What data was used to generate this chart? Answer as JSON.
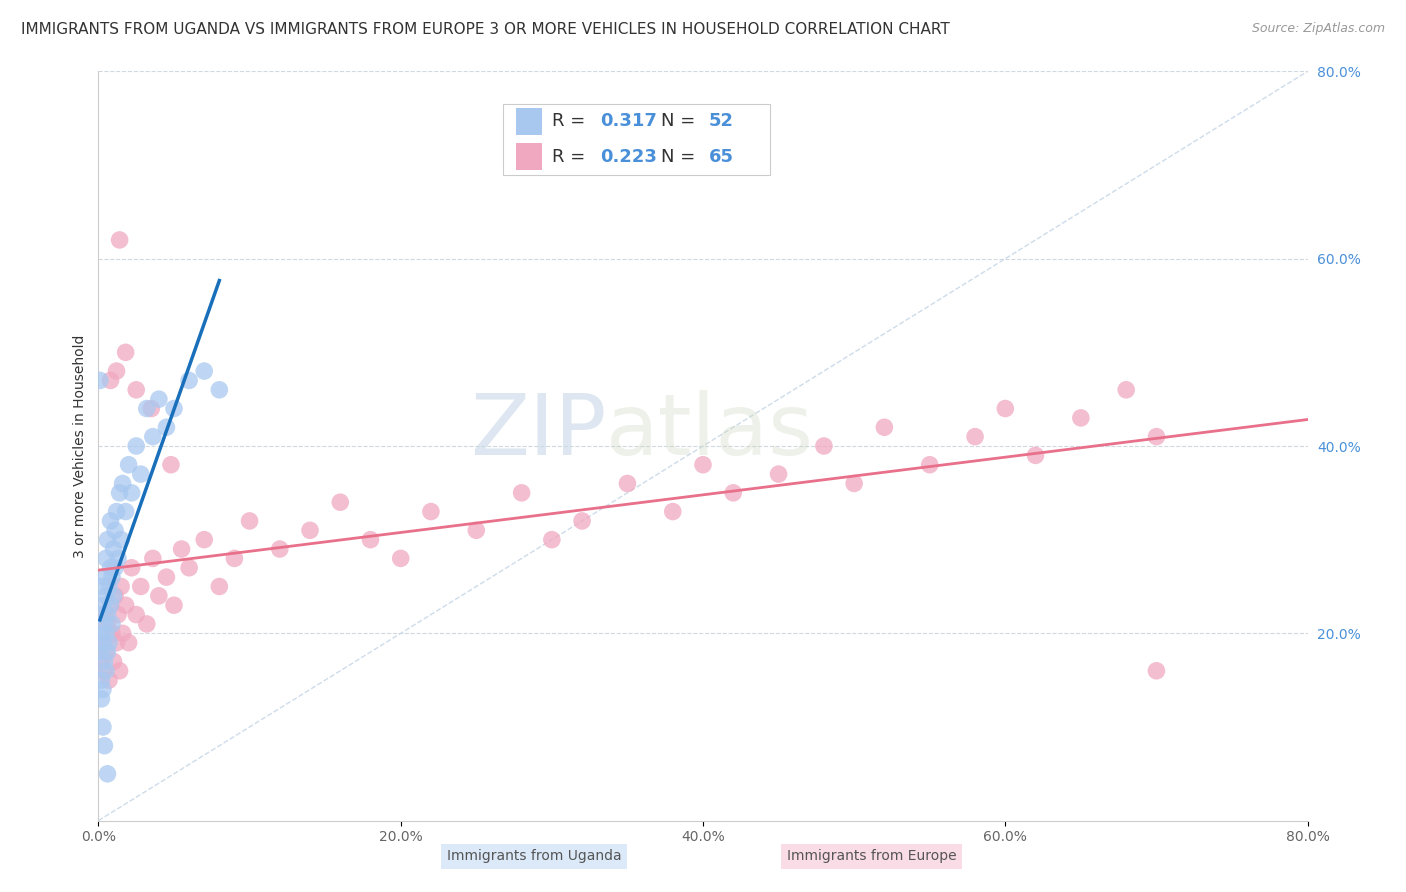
{
  "title": "IMMIGRANTS FROM UGANDA VS IMMIGRANTS FROM EUROPE 3 OR MORE VEHICLES IN HOUSEHOLD CORRELATION CHART",
  "source": "Source: ZipAtlas.com",
  "legend_labels": [
    "Immigrants from Uganda",
    "Immigrants from Europe"
  ],
  "ylabel": "3 or more Vehicles in Household",
  "xlim": [
    0.0,
    0.8
  ],
  "ylim": [
    0.0,
    0.8
  ],
  "xtick_labels": [
    "0.0%",
    "",
    "20.0%",
    "",
    "40.0%",
    "",
    "60.0%",
    "",
    "80.0%"
  ],
  "xtick_vals": [
    0.0,
    0.1,
    0.2,
    0.3,
    0.4,
    0.5,
    0.6,
    0.7,
    0.8
  ],
  "ytick_right_labels": [
    "80.0%",
    "60.0%",
    "40.0%",
    "20.0%"
  ],
  "ytick_right_vals": [
    0.8,
    0.6,
    0.4,
    0.2
  ],
  "R_uganda": 0.317,
  "N_uganda": 52,
  "R_europe": 0.223,
  "N_europe": 65,
  "uganda_color": "#a8c8f0",
  "europe_color": "#f0a8c0",
  "uganda_line_color": "#1a6fbb",
  "europe_line_color": "#e8708a",
  "diagonal_color": "#c8d8e8",
  "watermark_zip": "ZIP",
  "watermark_atlas": "atlas",
  "bg_color": "#ffffff",
  "grid_color": "#d0d8e0",
  "title_fontsize": 11,
  "label_fontsize": 10,
  "tick_fontsize": 10,
  "legend_fontsize": 13,
  "right_tick_color": "#4a90d9",
  "uganda_x": [
    0.001,
    0.001,
    0.002,
    0.002,
    0.002,
    0.003,
    0.003,
    0.003,
    0.004,
    0.004,
    0.004,
    0.005,
    0.005,
    0.005,
    0.005,
    0.006,
    0.006,
    0.006,
    0.007,
    0.007,
    0.008,
    0.008,
    0.008,
    0.009,
    0.009,
    0.01,
    0.01,
    0.011,
    0.011,
    0.012,
    0.013,
    0.014,
    0.015,
    0.016,
    0.018,
    0.02,
    0.022,
    0.025,
    0.028,
    0.032,
    0.036,
    0.04,
    0.045,
    0.05,
    0.06,
    0.07,
    0.08,
    0.001,
    0.002,
    0.003,
    0.004,
    0.006
  ],
  "uganda_y": [
    0.22,
    0.18,
    0.25,
    0.2,
    0.15,
    0.23,
    0.19,
    0.14,
    0.26,
    0.21,
    0.17,
    0.24,
    0.2,
    0.16,
    0.28,
    0.22,
    0.18,
    0.3,
    0.25,
    0.19,
    0.27,
    0.23,
    0.32,
    0.26,
    0.21,
    0.29,
    0.24,
    0.31,
    0.27,
    0.33,
    0.28,
    0.35,
    0.3,
    0.36,
    0.33,
    0.38,
    0.35,
    0.4,
    0.37,
    0.44,
    0.41,
    0.45,
    0.42,
    0.44,
    0.47,
    0.48,
    0.46,
    0.47,
    0.13,
    0.1,
    0.08,
    0.05
  ],
  "europe_x": [
    0.001,
    0.002,
    0.003,
    0.004,
    0.005,
    0.006,
    0.007,
    0.008,
    0.009,
    0.01,
    0.011,
    0.012,
    0.013,
    0.014,
    0.015,
    0.016,
    0.018,
    0.02,
    0.022,
    0.025,
    0.028,
    0.032,
    0.036,
    0.04,
    0.045,
    0.05,
    0.055,
    0.06,
    0.07,
    0.08,
    0.09,
    0.1,
    0.12,
    0.14,
    0.16,
    0.18,
    0.2,
    0.22,
    0.25,
    0.28,
    0.3,
    0.32,
    0.35,
    0.38,
    0.4,
    0.42,
    0.45,
    0.48,
    0.5,
    0.52,
    0.55,
    0.58,
    0.6,
    0.62,
    0.65,
    0.68,
    0.7,
    0.014,
    0.008,
    0.012,
    0.018,
    0.025,
    0.035,
    0.048,
    0.7
  ],
  "europe_y": [
    0.17,
    0.19,
    0.16,
    0.22,
    0.18,
    0.21,
    0.15,
    0.23,
    0.2,
    0.17,
    0.24,
    0.19,
    0.22,
    0.16,
    0.25,
    0.2,
    0.23,
    0.19,
    0.27,
    0.22,
    0.25,
    0.21,
    0.28,
    0.24,
    0.26,
    0.23,
    0.29,
    0.27,
    0.3,
    0.25,
    0.28,
    0.32,
    0.29,
    0.31,
    0.34,
    0.3,
    0.28,
    0.33,
    0.31,
    0.35,
    0.3,
    0.32,
    0.36,
    0.33,
    0.38,
    0.35,
    0.37,
    0.4,
    0.36,
    0.42,
    0.38,
    0.41,
    0.44,
    0.39,
    0.43,
    0.46,
    0.41,
    0.62,
    0.47,
    0.48,
    0.5,
    0.46,
    0.44,
    0.38,
    0.16
  ]
}
